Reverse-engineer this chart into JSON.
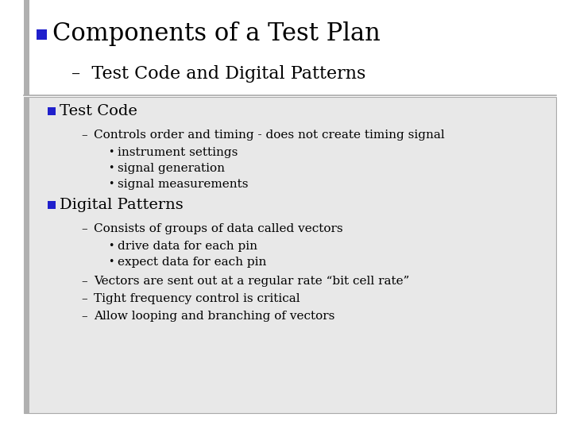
{
  "slide_bg": "#ffffff",
  "content_bg": "#e8e8e8",
  "accent_color": "#2020cc",
  "border_color": "#aaaaaa",
  "left_bar_color": "#b0b0b0",
  "title": "Components of a Test Plan",
  "title_fontsize": 22,
  "subtitle": "Test Code and Digital Patterns",
  "subtitle_fontsize": 16,
  "content_lines": [
    {
      "level": 1,
      "type": "square",
      "text": "Test Code",
      "fontsize": 14,
      "bold": false
    },
    {
      "level": 2,
      "type": "dash",
      "text": "Controls order and timing - does not create timing signal",
      "fontsize": 11,
      "bold": false
    },
    {
      "level": 3,
      "type": "bullet",
      "text": "instrument settings",
      "fontsize": 11,
      "bold": false
    },
    {
      "level": 3,
      "type": "bullet",
      "text": "signal generation",
      "fontsize": 11,
      "bold": false
    },
    {
      "level": 3,
      "type": "bullet",
      "text": "signal measurements",
      "fontsize": 11,
      "bold": false
    },
    {
      "level": 1,
      "type": "square",
      "text": "Digital Patterns",
      "fontsize": 14,
      "bold": false
    },
    {
      "level": 2,
      "type": "dash",
      "text": "Consists of groups of data called vectors",
      "fontsize": 11,
      "bold": false
    },
    {
      "level": 3,
      "type": "bullet",
      "text": "drive data for each pin",
      "fontsize": 11,
      "bold": false
    },
    {
      "level": 3,
      "type": "bullet",
      "text": "expect data for each pin",
      "fontsize": 11,
      "bold": false
    },
    {
      "level": 2,
      "type": "dash",
      "text": "Vectors are sent out at a regular rate “bit cell rate”",
      "fontsize": 11,
      "bold": false
    },
    {
      "level": 2,
      "type": "dash",
      "text": "Tight frequency control is critical",
      "fontsize": 11,
      "bold": false
    },
    {
      "level": 2,
      "type": "dash",
      "text": "Allow looping and branching of vectors",
      "fontsize": 11,
      "bold": false
    }
  ],
  "font_family": "DejaVu Serif"
}
